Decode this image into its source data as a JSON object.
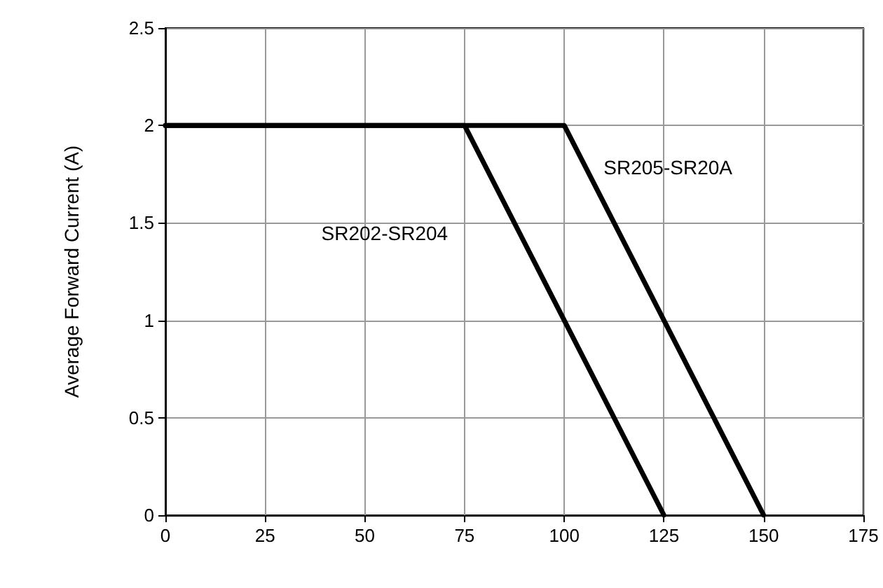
{
  "chart_data": {
    "type": "line",
    "ylabel": "Average Forward Current (A)",
    "xlim": [
      0,
      175
    ],
    "xticks": [
      0,
      25,
      50,
      75,
      100,
      125,
      150,
      175
    ],
    "ylim": [
      0,
      2.5
    ],
    "yticks": [
      0,
      0.5,
      1,
      1.5,
      2,
      2.5
    ],
    "grid": true,
    "legend": false,
    "marker": "none",
    "line_style": "solid",
    "series": [
      {
        "name": "SR202-SR204",
        "color": "#000000",
        "x": [
          0,
          75,
          125
        ],
        "values": [
          2,
          2,
          0
        ]
      },
      {
        "name": "SR205-SR20A",
        "color": "#000000",
        "x": [
          0,
          100,
          150
        ],
        "values": [
          2,
          2,
          0
        ]
      }
    ]
  }
}
